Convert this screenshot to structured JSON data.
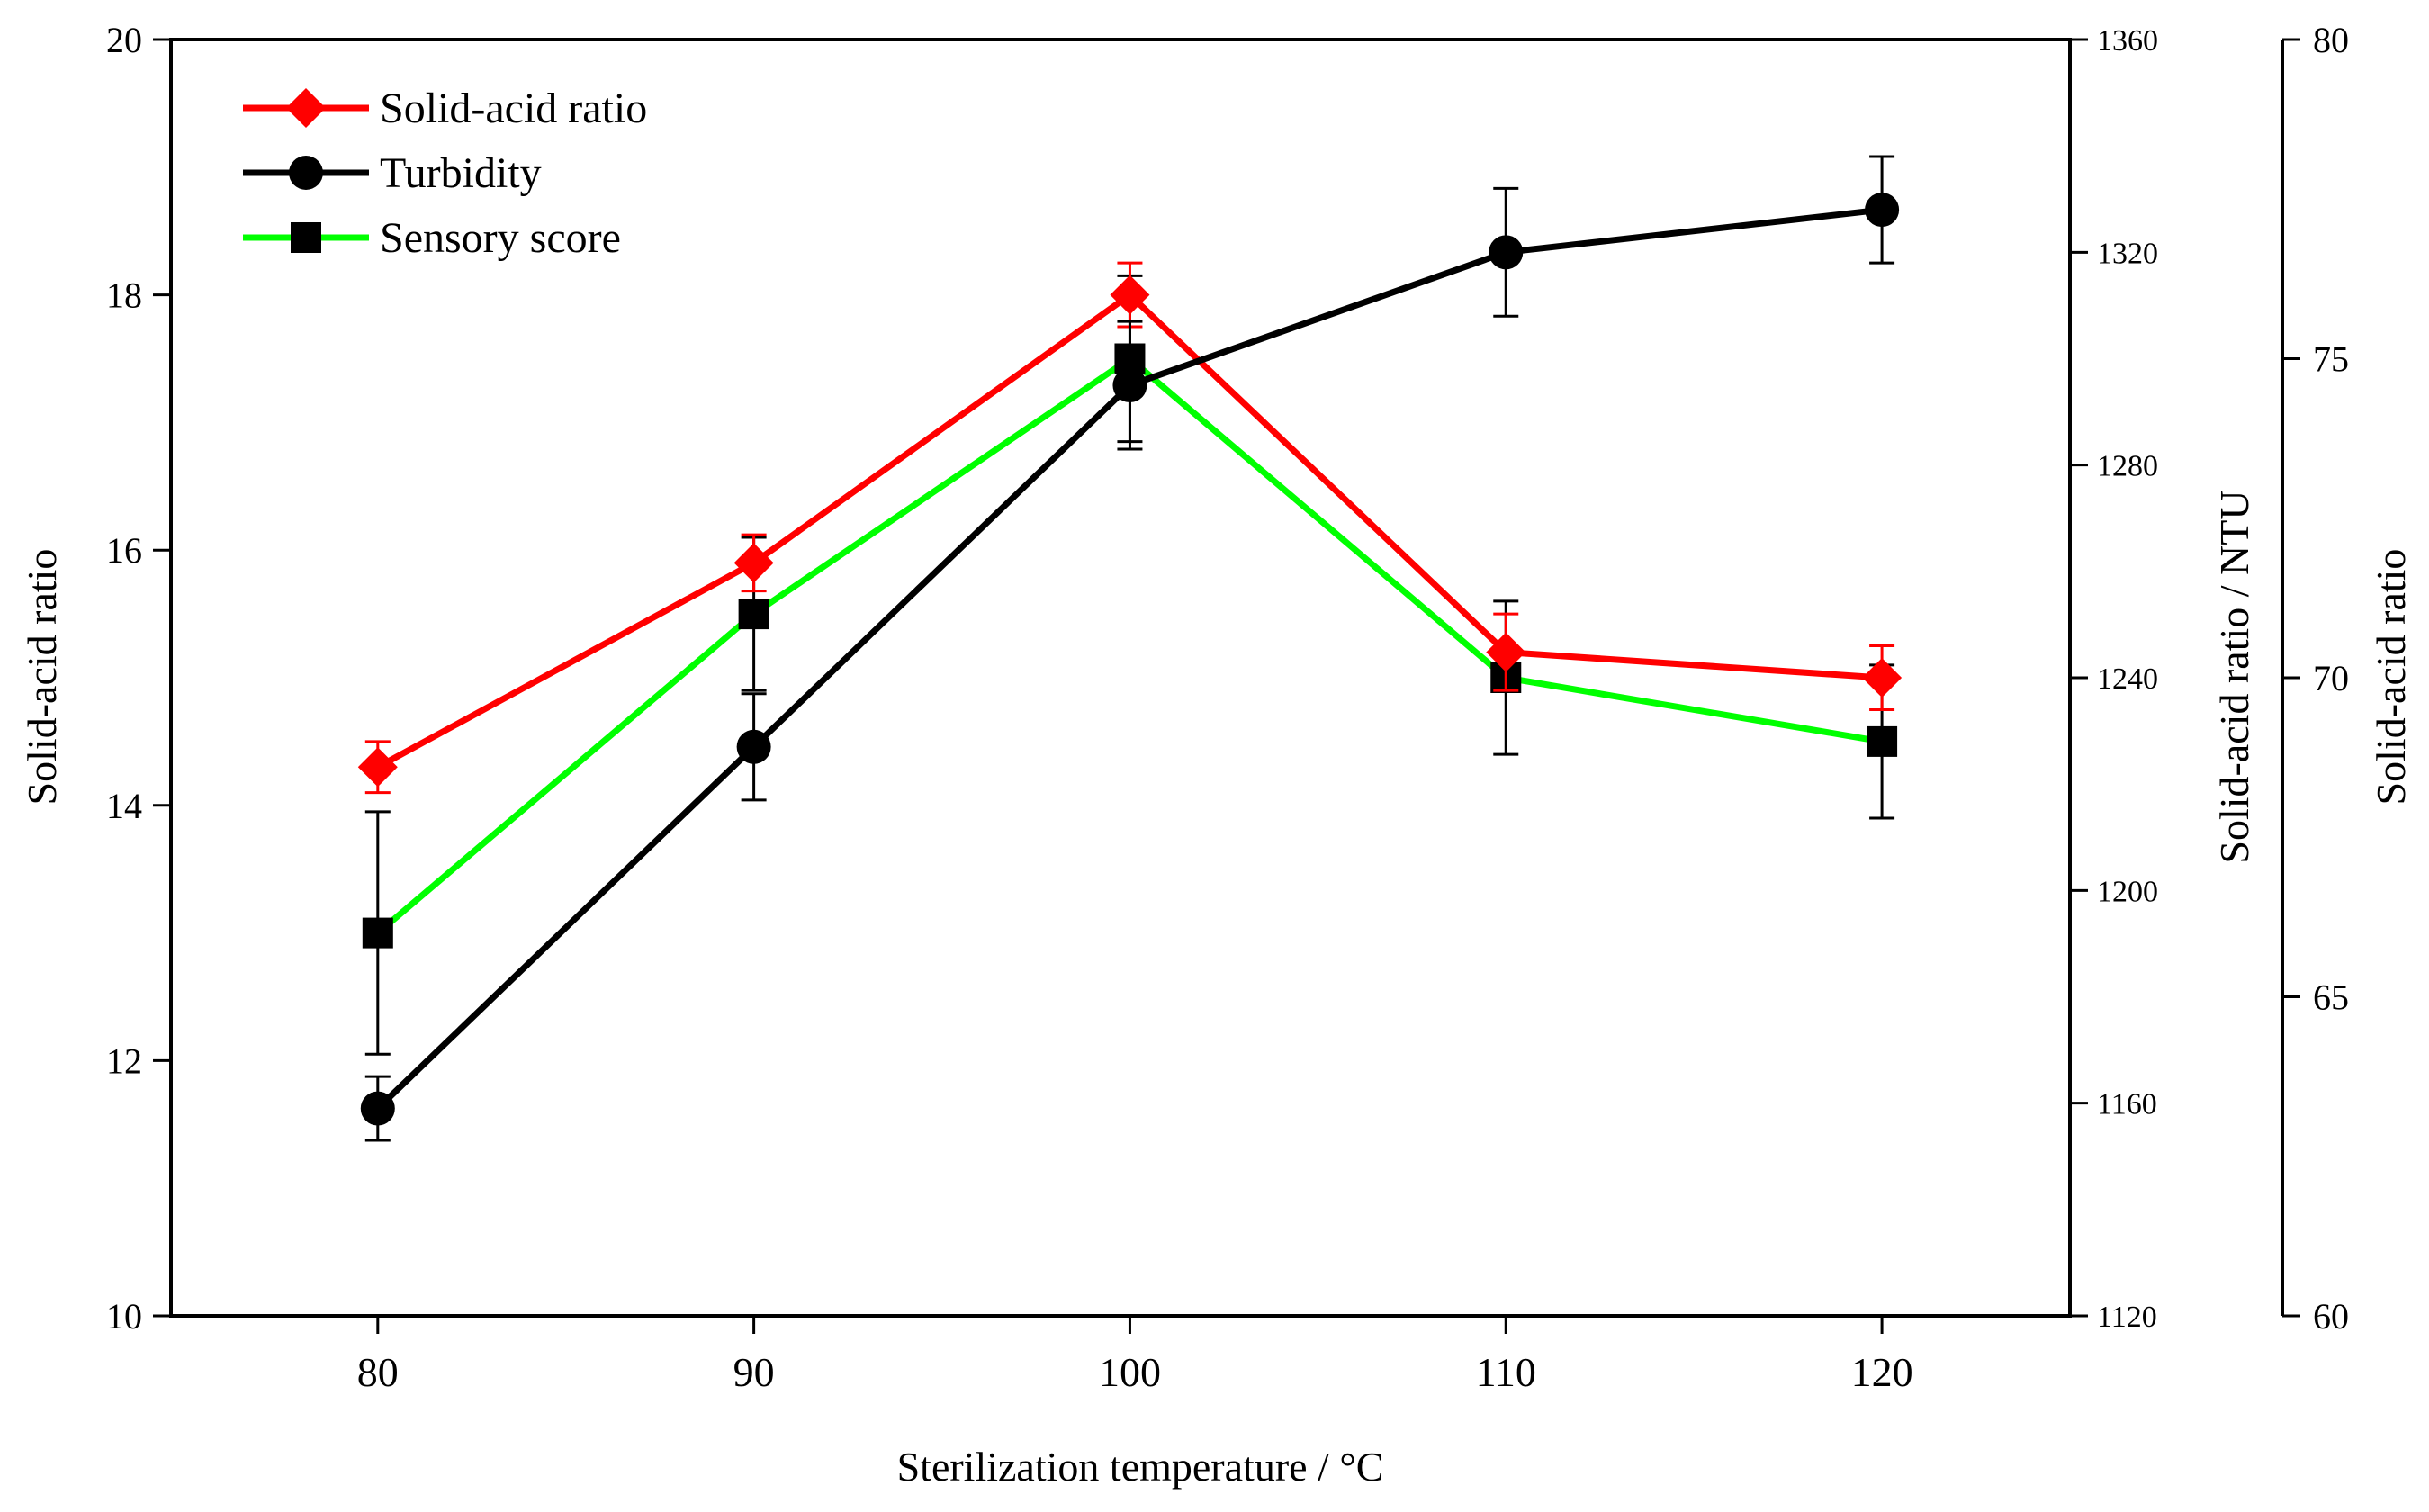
{
  "chart_data": {
    "type": "line",
    "title": "",
    "xlabel": "Sterilization temperature / °C",
    "x": [
      80,
      90,
      100,
      110,
      120
    ],
    "xlim": [
      74.5,
      125
    ],
    "x_ticks": [
      80,
      90,
      100,
      110,
      120
    ],
    "axes": {
      "left": {
        "label": "Solid-acid ratio",
        "range": [
          10,
          20
        ],
        "ticks": [
          10,
          12,
          14,
          16,
          18,
          20
        ]
      },
      "right1": {
        "label": "Solid-acid ratio / NTU",
        "range": [
          1120,
          1360
        ],
        "ticks": [
          1120,
          1160,
          1200,
          1240,
          1280,
          1320,
          1360
        ]
      },
      "right2": {
        "label": "Solid-acid ratio",
        "range": [
          60,
          80
        ],
        "ticks": [
          60,
          65,
          70,
          75,
          80
        ]
      }
    },
    "series": [
      {
        "name": "Solid-acid ratio",
        "axis": "left",
        "color": "#ff0000",
        "marker": "diamond",
        "values": [
          14.3,
          15.9,
          18.0,
          15.2,
          15.0
        ],
        "errors": [
          0.2,
          0.22,
          0.25,
          0.3,
          0.25
        ]
      },
      {
        "name": "Turbidity",
        "axis": "right1",
        "color": "#000000",
        "marker": "circle",
        "values": [
          1159,
          1227,
          1295,
          1320,
          1328
        ],
        "errors": [
          6,
          10,
          12,
          12,
          10
        ]
      },
      {
        "name": "Sensory score",
        "axis": "right2",
        "color": "#00ff00",
        "marker": "square",
        "values": [
          66,
          71,
          75,
          70,
          69
        ],
        "errors": [
          1.9,
          1.2,
          1.3,
          1.2,
          1.2
        ]
      }
    ],
    "legend_position": "top-left",
    "grid": false
  }
}
